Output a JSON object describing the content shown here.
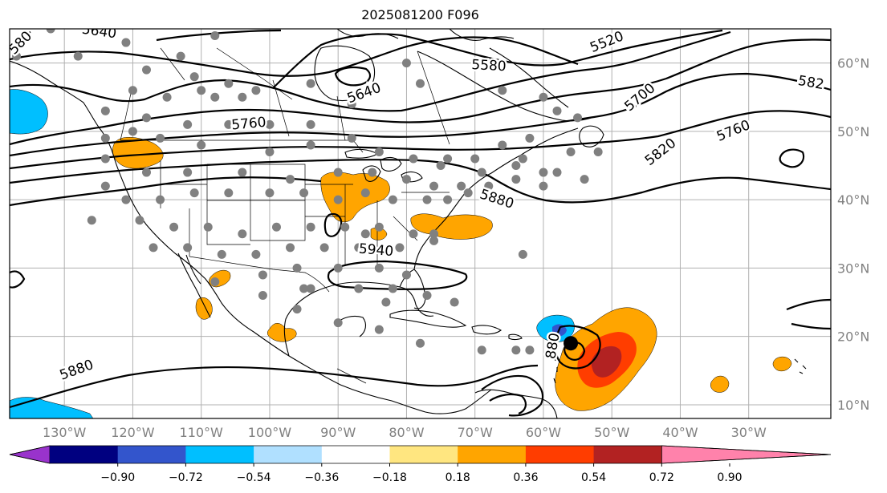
{
  "title": "2025081200 F096",
  "map": {
    "lon_range": [
      -138,
      -18
    ],
    "lat_range": [
      8,
      65
    ],
    "lon_ticks": [
      {
        "lon": -130,
        "label": "130°W"
      },
      {
        "lon": -120,
        "label": "120°W"
      },
      {
        "lon": -110,
        "label": "110°W"
      },
      {
        "lon": -100,
        "label": "100°W"
      },
      {
        "lon": -90,
        "label": "90°W"
      },
      {
        "lon": -80,
        "label": "80°W"
      },
      {
        "lon": -70,
        "label": "70°W"
      },
      {
        "lon": -60,
        "label": "60°W"
      },
      {
        "lon": -50,
        "label": "50°W"
      },
      {
        "lon": -40,
        "label": "40°W"
      },
      {
        "lon": -30,
        "label": "30°W"
      }
    ],
    "lat_ticks": [
      {
        "lat": 10,
        "label": "10°N"
      },
      {
        "lat": 20,
        "label": "20°N"
      },
      {
        "lat": 30,
        "label": "30°N"
      },
      {
        "lat": 40,
        "label": "40°N"
      },
      {
        "lat": 50,
        "label": "50°N"
      },
      {
        "lat": 60,
        "label": "60°N"
      }
    ],
    "contour_labels": [
      {
        "text": "5640",
        "lon": -125,
        "lat": 64
      },
      {
        "text": "580",
        "lon": -136,
        "lat": 62.5
      },
      {
        "text": "5520",
        "lon": -50.5,
        "lat": 62.5
      },
      {
        "text": "5580",
        "lon": -68,
        "lat": 59
      },
      {
        "text": "5640",
        "lon": -86,
        "lat": 55
      },
      {
        "text": "5700",
        "lon": -45.5,
        "lat": 54.5
      },
      {
        "text": "582",
        "lon": -21,
        "lat": 56.5
      },
      {
        "text": "5760",
        "lon": -103,
        "lat": 50.5
      },
      {
        "text": "5760",
        "lon": -32,
        "lat": 49.5
      },
      {
        "text": "5820",
        "lon": -42.5,
        "lat": 46.5
      },
      {
        "text": "5880",
        "lon": -67,
        "lat": 39.5
      },
      {
        "text": "5940",
        "lon": -84.5,
        "lat": 32
      },
      {
        "text": "5880",
        "lon": -128,
        "lat": 14.5
      },
      {
        "text": "880",
        "lon": -58,
        "lat": 18.5
      }
    ],
    "storm_marker": {
      "lon": -56,
      "lat": 19
    }
  },
  "colorbar": {
    "colors": [
      "#9933cc",
      "#000080",
      "#3355cc",
      "#00bfff",
      "#b0e0ff",
      "#ffffff",
      "#ffe680",
      "#ffa500",
      "#ff3d00",
      "#b22222",
      "#ff82ab"
    ],
    "tick_labels": [
      "−0.90",
      "−0.72",
      "−0.54",
      "−0.36",
      "−0.18",
      "0.18",
      "0.36",
      "0.54",
      "0.72",
      "0.90"
    ]
  }
}
